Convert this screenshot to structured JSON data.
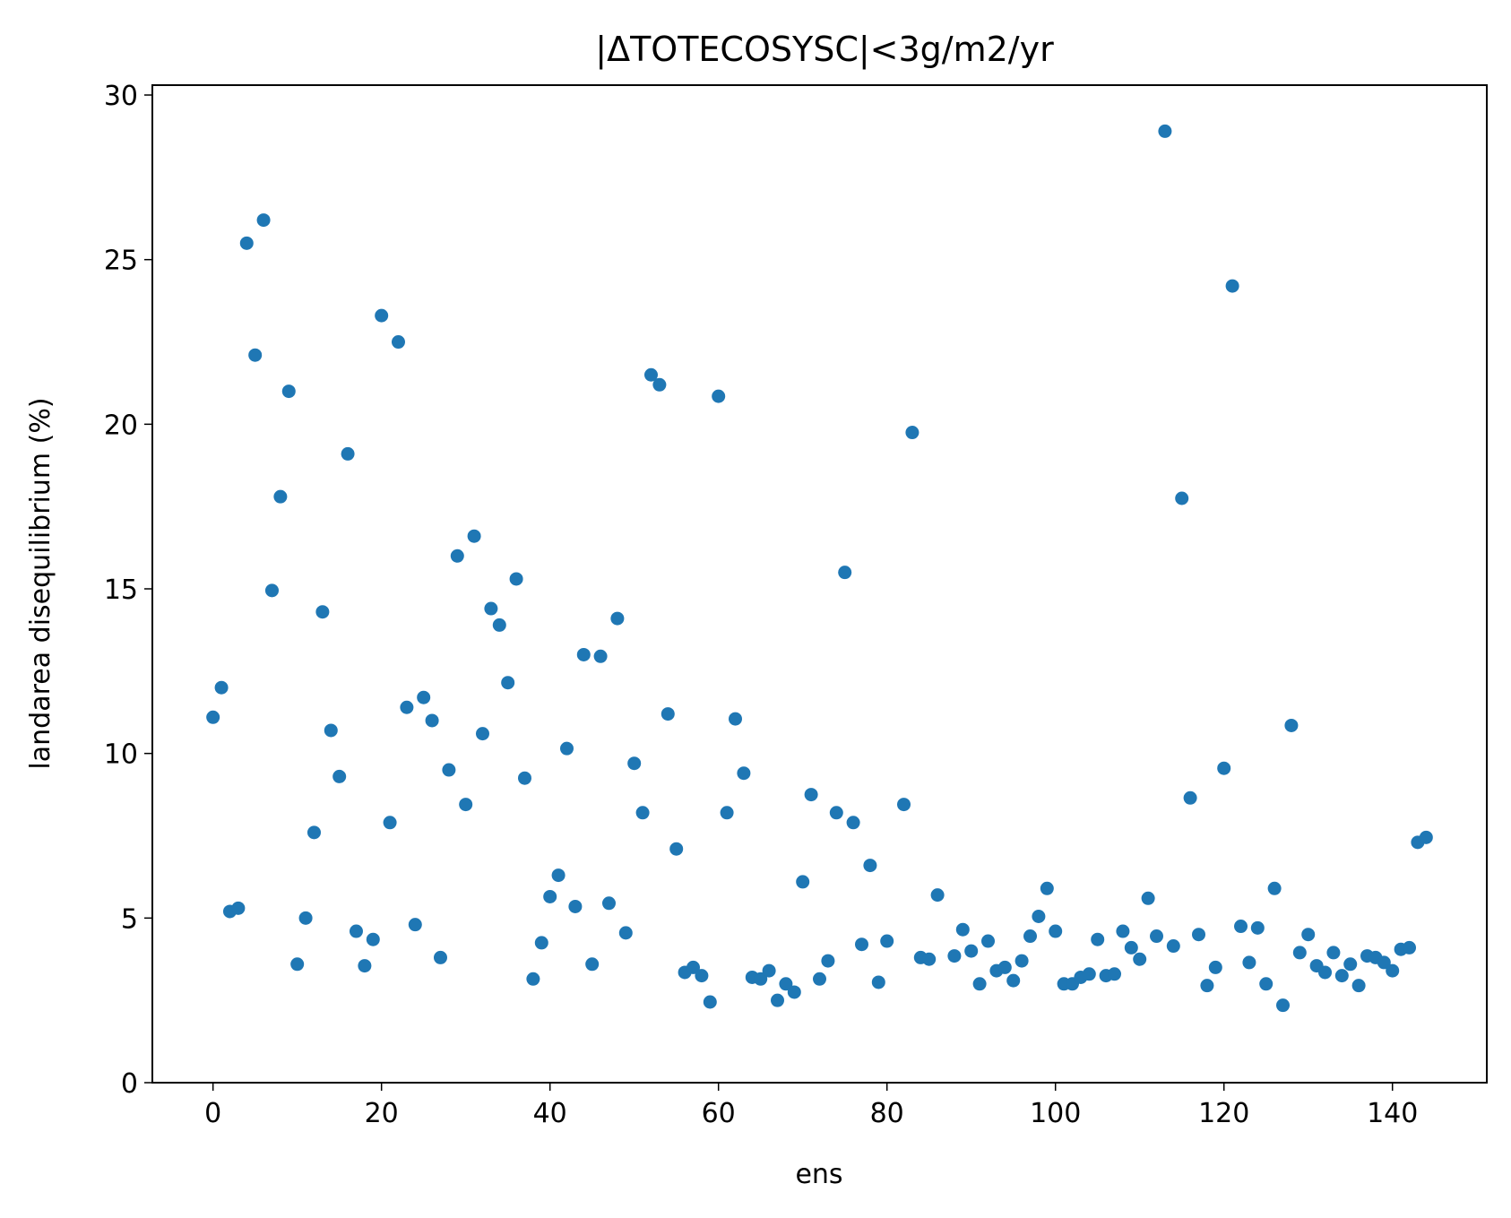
{
  "chart_data": {
    "type": "scatter",
    "title": "|ΔTOTECOSYSC|<3g/m2/yr",
    "xlabel": "ens",
    "ylabel": "landarea disequilibrium (%)",
    "xlim": [
      -7.2,
      151.2
    ],
    "ylim": [
      0,
      30.3
    ],
    "xticks": [
      0,
      20,
      40,
      60,
      80,
      100,
      120,
      140
    ],
    "yticks": [
      0,
      5,
      10,
      15,
      20,
      25,
      30
    ],
    "grid": false,
    "marker_color": "#1f77b4",
    "series": [
      {
        "x": [
          0,
          1,
          2,
          3,
          4,
          5,
          6,
          7,
          8,
          9,
          10,
          11,
          12,
          13,
          14,
          15,
          16,
          17,
          18,
          19,
          20,
          21,
          22,
          23,
          24,
          25,
          26,
          27,
          28,
          29,
          30,
          31,
          32,
          33,
          34,
          35,
          36,
          37,
          38,
          39,
          40,
          41,
          42,
          43,
          44,
          45,
          46,
          47,
          48,
          49,
          50,
          51,
          52,
          53,
          54,
          55,
          56,
          57,
          58,
          59,
          60,
          61,
          62,
          63,
          64,
          65,
          66,
          67,
          68,
          69,
          70,
          71,
          72,
          73,
          74,
          75,
          76,
          77,
          78,
          79,
          80,
          82,
          83,
          84,
          85,
          86,
          88,
          89,
          90,
          91,
          92,
          93,
          94,
          95,
          96,
          97,
          98,
          99,
          100,
          101,
          102,
          103,
          104,
          105,
          106,
          107,
          108,
          109,
          110,
          111,
          112,
          113,
          114,
          115,
          116,
          117,
          118,
          119,
          120,
          121,
          122,
          123,
          124,
          125,
          126,
          127,
          128,
          129,
          130,
          131,
          132,
          133,
          134,
          135,
          136,
          137,
          138,
          139,
          140,
          141,
          142,
          143,
          144
        ],
        "y": [
          11.1,
          12.0,
          5.2,
          5.3,
          25.5,
          22.1,
          26.2,
          14.95,
          17.8,
          21.0,
          3.6,
          5.0,
          7.6,
          14.3,
          10.7,
          9.3,
          19.1,
          4.6,
          3.55,
          4.35,
          23.3,
          7.9,
          22.5,
          11.4,
          4.8,
          11.7,
          11.0,
          3.8,
          9.5,
          16.0,
          8.45,
          16.6,
          10.6,
          14.4,
          13.9,
          12.15,
          15.3,
          9.25,
          3.15,
          4.25,
          5.65,
          6.3,
          10.15,
          5.35,
          13.0,
          3.6,
          12.95,
          5.45,
          14.1,
          4.55,
          9.7,
          8.2,
          21.5,
          21.2,
          11.2,
          7.1,
          3.35,
          3.5,
          3.25,
          2.45,
          20.85,
          8.2,
          11.05,
          9.4,
          3.2,
          3.15,
          3.4,
          2.5,
          3.0,
          2.75,
          6.1,
          8.75,
          3.15,
          3.7,
          8.2,
          15.5,
          7.9,
          4.2,
          6.6,
          3.05,
          4.3,
          8.45,
          19.75,
          3.8,
          3.75,
          5.7,
          3.85,
          4.65,
          4.0,
          3.0,
          4.3,
          3.4,
          3.5,
          3.1,
          3.7,
          4.45,
          5.05,
          5.9,
          4.6,
          3.0,
          3.0,
          3.2,
          3.3,
          4.35,
          3.25,
          3.3,
          4.6,
          4.1,
          3.75,
          5.6,
          4.45,
          28.9,
          4.15,
          17.75,
          8.65,
          4.5,
          2.95,
          3.5,
          9.55,
          24.2,
          4.75,
          3.65,
          4.7,
          3.0,
          5.9,
          2.35,
          10.85,
          3.95,
          4.5,
          3.55,
          3.35,
          3.95,
          3.25,
          3.6,
          2.95,
          3.85,
          3.8,
          3.65,
          3.4,
          4.05,
          4.1,
          7.3,
          7.45
        ]
      }
    ]
  }
}
